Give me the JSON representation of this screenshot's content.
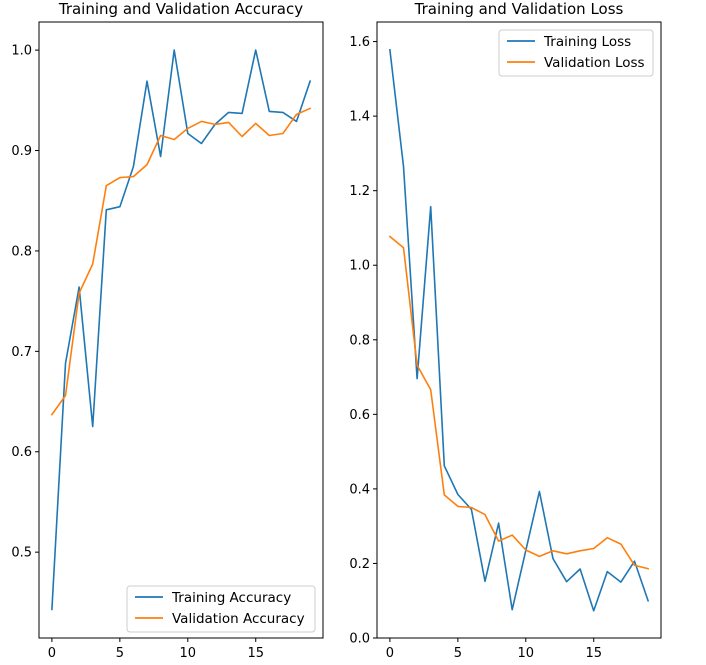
{
  "chart_data": [
    {
      "type": "line",
      "title": "Training and Validation Accuracy",
      "xlabel": "",
      "ylabel": "",
      "xlim": [
        -0.95,
        19.95
      ],
      "ylim": [
        0.4145,
        1.028
      ],
      "xticks": [
        0,
        5,
        10,
        15
      ],
      "yticks": [
        0.5,
        0.6,
        0.7,
        0.8,
        0.9,
        1.0
      ],
      "ytick_labels": [
        "0.5",
        "0.6",
        "0.7",
        "0.8",
        "0.9",
        "1.0"
      ],
      "grid": false,
      "legend_position": "lower right",
      "x": [
        0,
        1,
        2,
        3,
        4,
        5,
        6,
        7,
        8,
        9,
        10,
        11,
        12,
        13,
        14,
        15,
        16,
        17,
        18,
        19
      ],
      "series": [
        {
          "name": "Training Accuracy",
          "color": "#1f77b4",
          "values": [
            0.443,
            0.688,
            0.764,
            0.625,
            0.841,
            0.844,
            0.884,
            0.969,
            0.894,
            1.0,
            0.917,
            0.907,
            0.926,
            0.938,
            0.937,
            1.0,
            0.939,
            0.938,
            0.929,
            0.969
          ]
        },
        {
          "name": "Validation Accuracy",
          "color": "#ff7f0e",
          "values": [
            0.637,
            0.656,
            0.758,
            0.787,
            0.865,
            0.873,
            0.874,
            0.886,
            0.915,
            0.911,
            0.922,
            0.929,
            0.926,
            0.928,
            0.914,
            0.927,
            0.915,
            0.917,
            0.936,
            0.942
          ]
        }
      ]
    },
    {
      "type": "line",
      "title": "Training and Validation Loss",
      "xlabel": "",
      "ylabel": "",
      "xlim": [
        -0.95,
        19.95
      ],
      "ylim": [
        0.0,
        1.6525
      ],
      "xticks": [
        0,
        5,
        10,
        15
      ],
      "yticks": [
        0.0,
        0.2,
        0.4,
        0.6,
        0.8,
        1.0,
        1.2,
        1.4,
        1.6
      ],
      "ytick_labels": [
        "0.0",
        "0.2",
        "0.4",
        "0.6",
        "0.8",
        "1.0",
        "1.2",
        "1.4",
        "1.6"
      ],
      "grid": false,
      "legend_position": "upper right",
      "x": [
        0,
        1,
        2,
        3,
        4,
        5,
        6,
        7,
        8,
        9,
        10,
        11,
        12,
        13,
        14,
        15,
        16,
        17,
        18,
        19
      ],
      "series": [
        {
          "name": "Training Loss",
          "color": "#1f77b4",
          "values": [
            1.578,
            1.265,
            0.696,
            1.157,
            0.462,
            0.385,
            0.345,
            0.152,
            0.308,
            0.076,
            0.235,
            0.393,
            0.213,
            0.151,
            0.185,
            0.073,
            0.178,
            0.15,
            0.206,
            0.1
          ]
        },
        {
          "name": "Validation Loss",
          "color": "#ff7f0e",
          "values": [
            1.077,
            1.047,
            0.732,
            0.666,
            0.384,
            0.353,
            0.35,
            0.331,
            0.26,
            0.276,
            0.236,
            0.219,
            0.234,
            0.226,
            0.234,
            0.24,
            0.269,
            0.252,
            0.195,
            0.186
          ]
        }
      ]
    }
  ]
}
